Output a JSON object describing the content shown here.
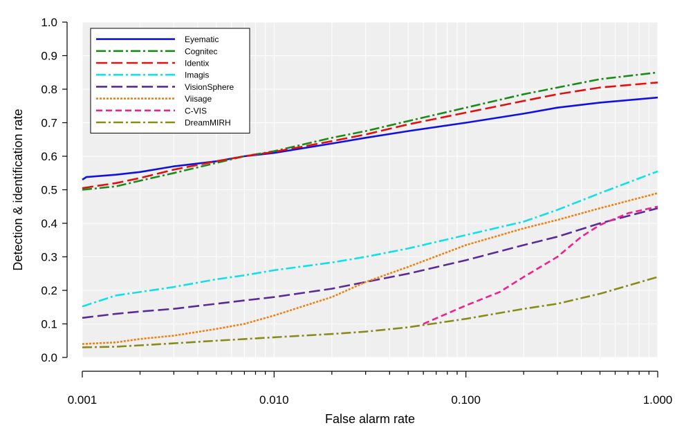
{
  "chart_data": {
    "type": "line",
    "xlabel": "False alarm rate",
    "ylabel": "Detection & identification rate",
    "x_scale": "log",
    "xlim": [
      0.001,
      1.0
    ],
    "ylim": [
      0.0,
      1.0
    ],
    "x_ticks": [
      0.001,
      0.01,
      0.1,
      1.0
    ],
    "x_tick_labels": [
      "0.001",
      "0.010",
      "0.100",
      "1.000"
    ],
    "y_ticks": [
      0.0,
      0.1,
      0.2,
      0.3,
      0.4,
      0.5,
      0.6,
      0.7,
      0.8,
      0.9,
      1.0
    ],
    "y_tick_labels": [
      "0.0",
      "0.1",
      "0.2",
      "0.3",
      "0.4",
      "0.5",
      "0.6",
      "0.7",
      "0.8",
      "0.9",
      "1.0"
    ],
    "grid": true,
    "legend_position": "top-left",
    "series": [
      {
        "name": "Eyematic",
        "color": "#1010e0",
        "dash": "solid",
        "points": [
          [
            0.001,
            0.53
          ],
          [
            0.00105,
            0.538
          ],
          [
            0.0015,
            0.545
          ],
          [
            0.002,
            0.553
          ],
          [
            0.003,
            0.57
          ],
          [
            0.005,
            0.585
          ],
          [
            0.007,
            0.6
          ],
          [
            0.01,
            0.61
          ],
          [
            0.02,
            0.638
          ],
          [
            0.03,
            0.655
          ],
          [
            0.05,
            0.675
          ],
          [
            0.1,
            0.7
          ],
          [
            0.2,
            0.727
          ],
          [
            0.3,
            0.745
          ],
          [
            0.5,
            0.76
          ],
          [
            1.0,
            0.775
          ]
        ]
      },
      {
        "name": "Cognitec",
        "color": "#1a8a1a",
        "dash": "dashdot",
        "points": [
          [
            0.001,
            0.5
          ],
          [
            0.0015,
            0.51
          ],
          [
            0.002,
            0.527
          ],
          [
            0.003,
            0.55
          ],
          [
            0.005,
            0.58
          ],
          [
            0.007,
            0.6
          ],
          [
            0.01,
            0.615
          ],
          [
            0.02,
            0.655
          ],
          [
            0.03,
            0.675
          ],
          [
            0.05,
            0.705
          ],
          [
            0.1,
            0.745
          ],
          [
            0.2,
            0.785
          ],
          [
            0.3,
            0.805
          ],
          [
            0.5,
            0.83
          ],
          [
            1.0,
            0.85
          ]
        ]
      },
      {
        "name": "Identix",
        "color": "#e01010",
        "dash": "longdash",
        "points": [
          [
            0.001,
            0.505
          ],
          [
            0.0015,
            0.52
          ],
          [
            0.002,
            0.535
          ],
          [
            0.003,
            0.56
          ],
          [
            0.005,
            0.585
          ],
          [
            0.007,
            0.6
          ],
          [
            0.01,
            0.613
          ],
          [
            0.02,
            0.645
          ],
          [
            0.03,
            0.665
          ],
          [
            0.05,
            0.695
          ],
          [
            0.1,
            0.73
          ],
          [
            0.2,
            0.765
          ],
          [
            0.3,
            0.785
          ],
          [
            0.5,
            0.805
          ],
          [
            1.0,
            0.82
          ]
        ]
      },
      {
        "name": "Imagis",
        "color": "#10e0e8",
        "dash": "dashdot",
        "points": [
          [
            0.001,
            0.152
          ],
          [
            0.0015,
            0.185
          ],
          [
            0.002,
            0.195
          ],
          [
            0.003,
            0.21
          ],
          [
            0.005,
            0.233
          ],
          [
            0.007,
            0.245
          ],
          [
            0.01,
            0.26
          ],
          [
            0.02,
            0.283
          ],
          [
            0.03,
            0.3
          ],
          [
            0.05,
            0.325
          ],
          [
            0.1,
            0.365
          ],
          [
            0.2,
            0.405
          ],
          [
            0.3,
            0.44
          ],
          [
            0.5,
            0.49
          ],
          [
            1.0,
            0.555
          ]
        ]
      },
      {
        "name": "VisionSphere",
        "color": "#5a2a96",
        "dash": "longdash",
        "points": [
          [
            0.001,
            0.118
          ],
          [
            0.0015,
            0.13
          ],
          [
            0.002,
            0.137
          ],
          [
            0.003,
            0.145
          ],
          [
            0.005,
            0.16
          ],
          [
            0.007,
            0.17
          ],
          [
            0.01,
            0.18
          ],
          [
            0.02,
            0.205
          ],
          [
            0.03,
            0.225
          ],
          [
            0.05,
            0.25
          ],
          [
            0.1,
            0.29
          ],
          [
            0.2,
            0.335
          ],
          [
            0.3,
            0.36
          ],
          [
            0.5,
            0.4
          ],
          [
            1.0,
            0.445
          ]
        ]
      },
      {
        "name": "Viisage",
        "color": "#f07f10",
        "dash": "dotted",
        "points": [
          [
            0.001,
            0.04
          ],
          [
            0.0015,
            0.045
          ],
          [
            0.002,
            0.055
          ],
          [
            0.003,
            0.065
          ],
          [
            0.005,
            0.085
          ],
          [
            0.007,
            0.1
          ],
          [
            0.01,
            0.125
          ],
          [
            0.02,
            0.18
          ],
          [
            0.03,
            0.225
          ],
          [
            0.05,
            0.27
          ],
          [
            0.1,
            0.335
          ],
          [
            0.2,
            0.385
          ],
          [
            0.3,
            0.41
          ],
          [
            0.5,
            0.445
          ],
          [
            1.0,
            0.49
          ]
        ]
      },
      {
        "name": "C-VIS",
        "color": "#f0208c",
        "dash": "shortdash",
        "points": [
          [
            0.06,
            0.1
          ],
          [
            0.1,
            0.155
          ],
          [
            0.15,
            0.195
          ],
          [
            0.2,
            0.24
          ],
          [
            0.3,
            0.3
          ],
          [
            0.4,
            0.36
          ],
          [
            0.5,
            0.395
          ],
          [
            0.7,
            0.43
          ],
          [
            1.0,
            0.45
          ]
        ]
      },
      {
        "name": "DreamMIRH",
        "color": "#8a8a1a",
        "dash": "dashdot",
        "points": [
          [
            0.001,
            0.03
          ],
          [
            0.0015,
            0.032
          ],
          [
            0.002,
            0.036
          ],
          [
            0.003,
            0.042
          ],
          [
            0.005,
            0.05
          ],
          [
            0.01,
            0.06
          ],
          [
            0.02,
            0.07
          ],
          [
            0.03,
            0.077
          ],
          [
            0.05,
            0.09
          ],
          [
            0.1,
            0.115
          ],
          [
            0.2,
            0.145
          ],
          [
            0.3,
            0.16
          ],
          [
            0.5,
            0.19
          ],
          [
            1.0,
            0.24
          ]
        ]
      }
    ]
  }
}
